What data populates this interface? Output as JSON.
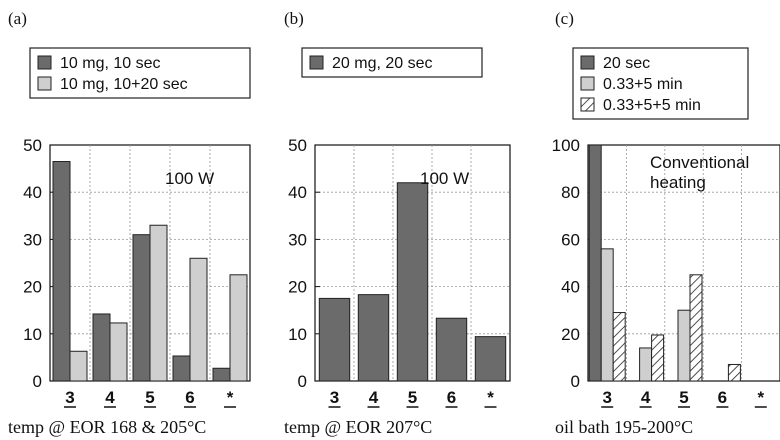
{
  "colors": {
    "dark_bar": "#6b6b6b",
    "light_bar": "#cfcfcf",
    "hatch_bar": "#ffffff",
    "grid": "#9a9a9a",
    "axis": "#111111"
  },
  "chart_data": [
    {
      "type": "bar",
      "panel_label": "(a)",
      "categories": [
        "3",
        "4",
        "5",
        "6",
        "*"
      ],
      "series": [
        {
          "name": "10 mg, 10 sec",
          "style": "dark",
          "values": [
            46.5,
            14.2,
            31,
            5.3,
            2.7
          ]
        },
        {
          "name": "10 mg, 10+20 sec",
          "style": "light",
          "values": [
            6.3,
            12.3,
            33,
            26,
            22.5
          ]
        }
      ],
      "ylim": [
        0,
        50
      ],
      "yticks": [
        "0",
        "10",
        "20",
        "30",
        "40",
        "50"
      ],
      "annotation": "100 W",
      "caption": "temp @ EOR 168 & 205°C",
      "grid": true,
      "legend_position": "top"
    },
    {
      "type": "bar",
      "panel_label": "(b)",
      "categories": [
        "3",
        "4",
        "5",
        "6",
        "*"
      ],
      "series": [
        {
          "name": "20 mg, 20 sec",
          "style": "dark",
          "values": [
            17.5,
            18.3,
            42,
            13.3,
            9.4
          ]
        }
      ],
      "ylim": [
        0,
        50
      ],
      "yticks": [
        "0",
        "10",
        "20",
        "30",
        "40",
        "50"
      ],
      "annotation": "100 W",
      "caption": "temp @ EOR 207°C",
      "grid": true,
      "legend_position": "top"
    },
    {
      "type": "bar",
      "panel_label": "(c)",
      "categories": [
        "3",
        "4",
        "5",
        "6",
        "*"
      ],
      "series": [
        {
          "name": "20 sec",
          "style": "dark",
          "values": [
            100,
            0,
            0,
            0,
            0
          ]
        },
        {
          "name": "0.33+5 min",
          "style": "light",
          "values": [
            56,
            14,
            30,
            0,
            0
          ]
        },
        {
          "name": "0.33+5+5 min",
          "style": "hatch",
          "values": [
            29,
            19.5,
            45,
            7,
            0
          ]
        }
      ],
      "ylim": [
        0,
        100
      ],
      "yticks": [
        "0",
        "20",
        "40",
        "60",
        "80",
        "100"
      ],
      "annotation": "Conventional\nheating",
      "caption": "oil bath 195-200°C",
      "grid": true,
      "legend_position": "top"
    }
  ]
}
